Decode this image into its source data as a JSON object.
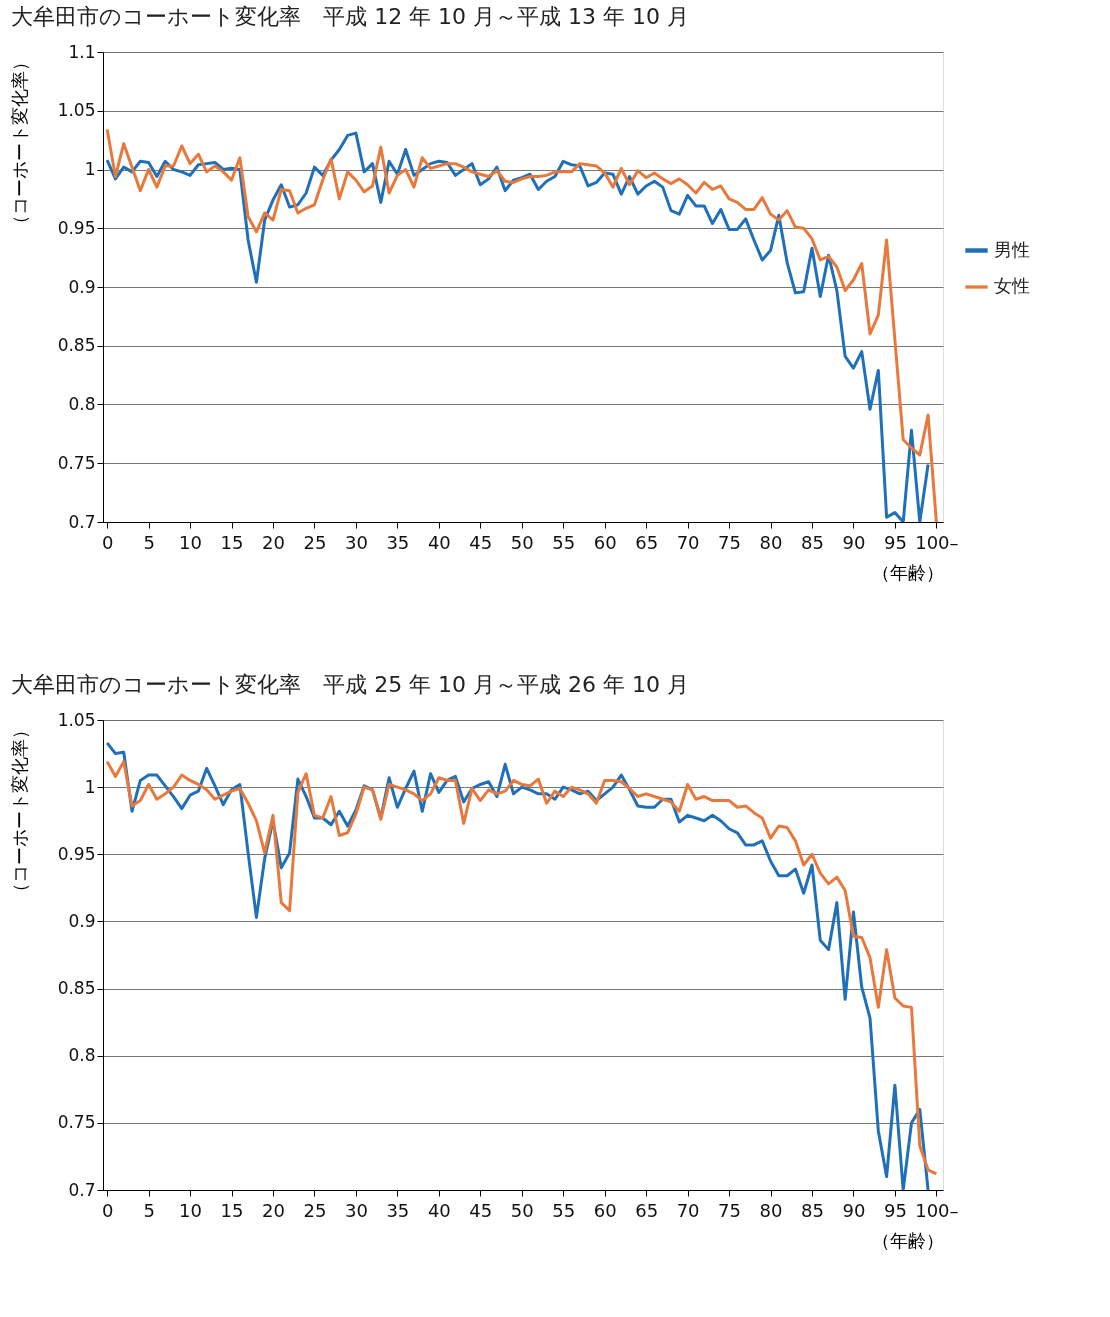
{
  "chart_data": [
    {
      "type": "line",
      "title": "大牟田市のコーホート変化率　平成 12 年 10 月～平成 13 年 10 月",
      "ylabel": "（コーホート変化率）",
      "xlabel": "（年齢）",
      "xlim": [
        -0.5,
        100.8
      ],
      "xticks": [
        0,
        5,
        10,
        15,
        20,
        25,
        30,
        35,
        40,
        45,
        50,
        55,
        60,
        65,
        70,
        75,
        80,
        85,
        90,
        95,
        {
          "value": 100,
          "label": "100–"
        }
      ],
      "ylim": [
        0.7,
        1.1
      ],
      "yticks": [
        0.7,
        0.75,
        0.8,
        0.85,
        0.9,
        0.95,
        1,
        1.05,
        1.1
      ],
      "grid": "y",
      "legend": "right",
      "marker": "none",
      "line_style": "solid",
      "x": [
        0,
        1,
        2,
        3,
        4,
        5,
        6,
        7,
        8,
        9,
        10,
        11,
        12,
        13,
        14,
        15,
        16,
        17,
        18,
        19,
        20,
        21,
        22,
        23,
        24,
        25,
        26,
        27,
        28,
        29,
        30,
        31,
        32,
        33,
        34,
        35,
        36,
        37,
        38,
        39,
        40,
        41,
        42,
        43,
        44,
        45,
        46,
        47,
        48,
        49,
        50,
        51,
        52,
        53,
        54,
        55,
        56,
        57,
        58,
        59,
        60,
        61,
        62,
        63,
        64,
        65,
        66,
        67,
        68,
        69,
        70,
        71,
        72,
        73,
        74,
        75,
        76,
        77,
        78,
        79,
        80,
        81,
        82,
        83,
        84,
        85,
        86,
        87,
        88,
        89,
        90,
        91,
        92,
        93,
        94,
        95,
        96,
        97,
        98,
        99,
        100
      ],
      "series": [
        {
          "name": "男性",
          "color": "#1f70b8",
          "values": [
            1.008,
            0.992,
            1.002,
            0.998,
            1.007,
            1.006,
            0.994,
            1.007,
            1.0,
            0.998,
            0.995,
            1.004,
            1.005,
            1.006,
            1.0,
            1.001,
            1.0,
            0.94,
            0.904,
            0.957,
            0.974,
            0.987,
            0.968,
            0.97,
            0.98,
            1.002,
            0.995,
            1.008,
            1.017,
            1.029,
            1.031,
            0.998,
            1.005,
            0.972,
            1.007,
            0.996,
            1.017,
            0.995,
            1.0,
            1.005,
            1.007,
            1.006,
            0.995,
            1.0,
            1.005,
            0.987,
            0.992,
            1.002,
            0.982,
            0.991,
            0.993,
            0.996,
            0.983,
            0.99,
            0.994,
            1.007,
            1.004,
            1.003,
            0.986,
            0.989,
            0.997,
            0.996,
            0.979,
            0.994,
            0.979,
            0.986,
            0.99,
            0.985,
            0.965,
            0.962,
            0.978,
            0.969,
            0.969,
            0.954,
            0.966,
            0.949,
            0.949,
            0.958,
            0.94,
            0.923,
            0.931,
            0.961,
            0.921,
            0.895,
            0.896,
            0.933,
            0.892,
            0.927,
            0.897,
            0.841,
            0.831,
            0.845,
            0.796,
            0.829,
            0.704,
            0.708,
            0.7,
            0.778,
            0.7,
            0.749,
            null
          ]
        },
        {
          "name": "女性",
          "color": "#e8793c",
          "values": [
            1.034,
            0.994,
            1.022,
            1.002,
            0.982,
            1.0,
            0.985,
            1.003,
            1.003,
            1.02,
            1.005,
            1.013,
            0.998,
            1.003,
            0.998,
            0.991,
            1.01,
            0.96,
            0.947,
            0.963,
            0.957,
            0.983,
            0.982,
            0.963,
            0.967,
            0.97,
            0.991,
            1.009,
            0.975,
            0.998,
            0.991,
            0.981,
            0.986,
            1.019,
            0.98,
            0.995,
            1.0,
            0.985,
            1.01,
            1.001,
            1.003,
            1.005,
            1.005,
            1.002,
            0.998,
            0.996,
            0.994,
            0.999,
            0.99,
            0.989,
            0.992,
            0.994,
            0.994,
            0.995,
            0.998,
            0.998,
            0.998,
            1.005,
            1.004,
            1.003,
            0.997,
            0.985,
            1.001,
            0.987,
            0.999,
            0.993,
            0.997,
            0.992,
            0.988,
            0.992,
            0.987,
            0.98,
            0.989,
            0.983,
            0.986,
            0.975,
            0.972,
            0.966,
            0.966,
            0.976,
            0.962,
            0.957,
            0.965,
            0.951,
            0.95,
            0.941,
            0.923,
            0.926,
            0.917,
            0.897,
            0.906,
            0.92,
            0.86,
            0.876,
            0.94,
            0.855,
            0.77,
            0.763,
            0.757,
            0.791,
            0.7
          ]
        }
      ]
    },
    {
      "type": "line",
      "title": "大牟田市のコーホート変化率　平成 25 年 10 月～平成 26 年 10 月",
      "ylabel": "（コーホート変化率）",
      "xlabel": "（年齢）",
      "xlim": [
        -0.5,
        100.8
      ],
      "xticks": [
        0,
        5,
        10,
        15,
        20,
        25,
        30,
        35,
        40,
        45,
        50,
        55,
        60,
        65,
        70,
        75,
        80,
        85,
        90,
        95,
        {
          "value": 100,
          "label": "100–"
        }
      ],
      "ylim": [
        0.7,
        1.05
      ],
      "yticks": [
        0.7,
        0.75,
        0.8,
        0.85,
        0.9,
        0.95,
        1,
        1.05
      ],
      "grid": "y",
      "legend": "right",
      "marker": "none",
      "line_style": "solid",
      "x": [
        0,
        1,
        2,
        3,
        4,
        5,
        6,
        7,
        8,
        9,
        10,
        11,
        12,
        13,
        14,
        15,
        16,
        17,
        18,
        19,
        20,
        21,
        22,
        23,
        24,
        25,
        26,
        27,
        28,
        29,
        30,
        31,
        32,
        33,
        34,
        35,
        36,
        37,
        38,
        39,
        40,
        41,
        42,
        43,
        44,
        45,
        46,
        47,
        48,
        49,
        50,
        51,
        52,
        53,
        54,
        55,
        56,
        57,
        58,
        59,
        60,
        61,
        62,
        63,
        64,
        65,
        66,
        67,
        68,
        69,
        70,
        71,
        72,
        73,
        74,
        75,
        76,
        77,
        78,
        79,
        80,
        81,
        82,
        83,
        84,
        85,
        86,
        87,
        88,
        89,
        90,
        91,
        92,
        93,
        94,
        95,
        96,
        97,
        98,
        99,
        100
      ],
      "series": [
        {
          "name": "男性",
          "color": "#1f70b8",
          "values": [
            1.033,
            1.025,
            1.026,
            0.982,
            1.005,
            1.009,
            1.009,
            1.001,
            0.993,
            0.984,
            0.994,
            0.997,
            1.014,
            1.001,
            0.987,
            0.998,
            1.002,
            0.951,
            0.903,
            0.947,
            0.975,
            0.94,
            0.951,
            1.006,
            0.993,
            0.977,
            0.977,
            0.972,
            0.982,
            0.971,
            0.983,
            1.001,
            0.998,
            0.977,
            1.007,
            0.985,
            0.999,
            1.012,
            0.982,
            1.01,
            0.996,
            1.005,
            1.008,
            0.989,
            0.999,
            1.002,
            1.004,
            0.993,
            1.017,
            0.995,
            1.0,
            0.998,
            0.995,
            0.995,
            0.991,
            1.0,
            0.998,
            0.995,
            0.997,
            0.99,
            0.995,
            1.0,
            1.009,
            0.998,
            0.986,
            0.985,
            0.985,
            0.991,
            0.991,
            0.974,
            0.979,
            0.977,
            0.975,
            0.979,
            0.975,
            0.969,
            0.966,
            0.957,
            0.957,
            0.96,
            0.945,
            0.934,
            0.934,
            0.939,
            0.921,
            0.942,
            0.886,
            0.879,
            0.914,
            0.842,
            0.907,
            0.851,
            0.828,
            0.744,
            0.71,
            0.778,
            0.7,
            0.75,
            0.76,
            0.7,
            null
          ]
        },
        {
          "name": "女性",
          "color": "#e8793c",
          "values": [
            1.019,
            1.008,
            1.019,
            0.986,
            0.99,
            1.002,
            0.991,
            0.995,
            1.0,
            1.009,
            1.005,
            1.002,
            0.998,
            0.991,
            0.994,
            0.997,
            0.999,
            0.988,
            0.975,
            0.951,
            0.979,
            0.914,
            0.908,
            0.996,
            1.01,
            0.979,
            0.977,
            0.993,
            0.964,
            0.966,
            0.98,
            1.0,
            0.998,
            0.976,
            1.002,
            1.0,
            0.998,
            0.995,
            0.99,
            0.995,
            1.007,
            1.005,
            1.005,
            0.973,
            0.999,
            0.99,
            0.998,
            0.995,
            0.997,
            1.005,
            1.002,
            1.001,
            1.006,
            0.988,
            0.997,
            0.993,
            1.0,
            0.998,
            0.995,
            0.988,
            1.005,
            1.005,
            1.004,
            0.999,
            0.993,
            0.995,
            0.993,
            0.991,
            0.989,
            0.982,
            1.002,
            0.991,
            0.993,
            0.99,
            0.99,
            0.99,
            0.985,
            0.986,
            0.981,
            0.977,
            0.962,
            0.971,
            0.97,
            0.96,
            0.942,
            0.95,
            0.936,
            0.928,
            0.933,
            0.923,
            0.889,
            0.888,
            0.873,
            0.836,
            0.879,
            0.843,
            0.837,
            0.836,
            0.733,
            0.715,
            0.712
          ]
        }
      ]
    }
  ]
}
